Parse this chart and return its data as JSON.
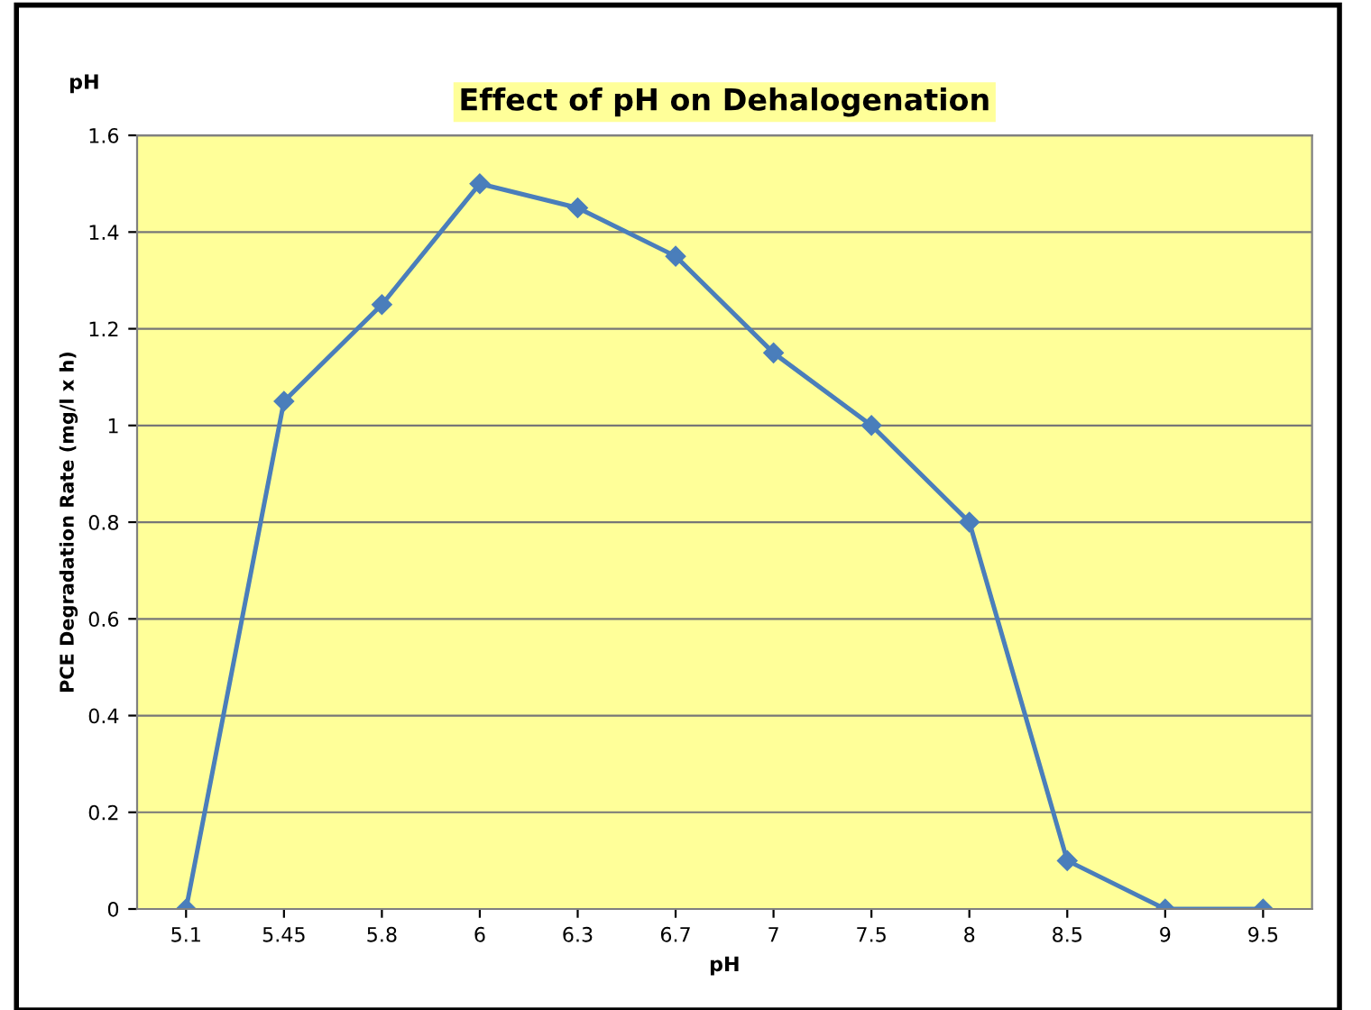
{
  "chart_data": {
    "type": "line",
    "title": "Effect of pH on Dehalogenation",
    "xlabel": "pH",
    "ylabel": "PCE Degradation Rate (mg/l x h)",
    "annotations": [
      "pH"
    ],
    "categories": [
      "5.1",
      "5.45",
      "5.8",
      "6",
      "6.3",
      "6.7",
      "7",
      "7.5",
      "8",
      "8.5",
      "9",
      "9.5"
    ],
    "series": [
      {
        "color": "#4a7ebb",
        "values": [
          0,
          1.05,
          1.25,
          1.5,
          1.45,
          1.35,
          1.15,
          1.0,
          0.8,
          0.1,
          0,
          0
        ]
      }
    ],
    "ylim": [
      0,
      1.6
    ],
    "yticks": [
      0,
      0.2,
      0.4,
      0.6,
      0.8,
      1,
      1.2,
      1.4,
      1.6
    ],
    "grid": "y",
    "marker": "diamond",
    "line_style": "solid"
  }
}
